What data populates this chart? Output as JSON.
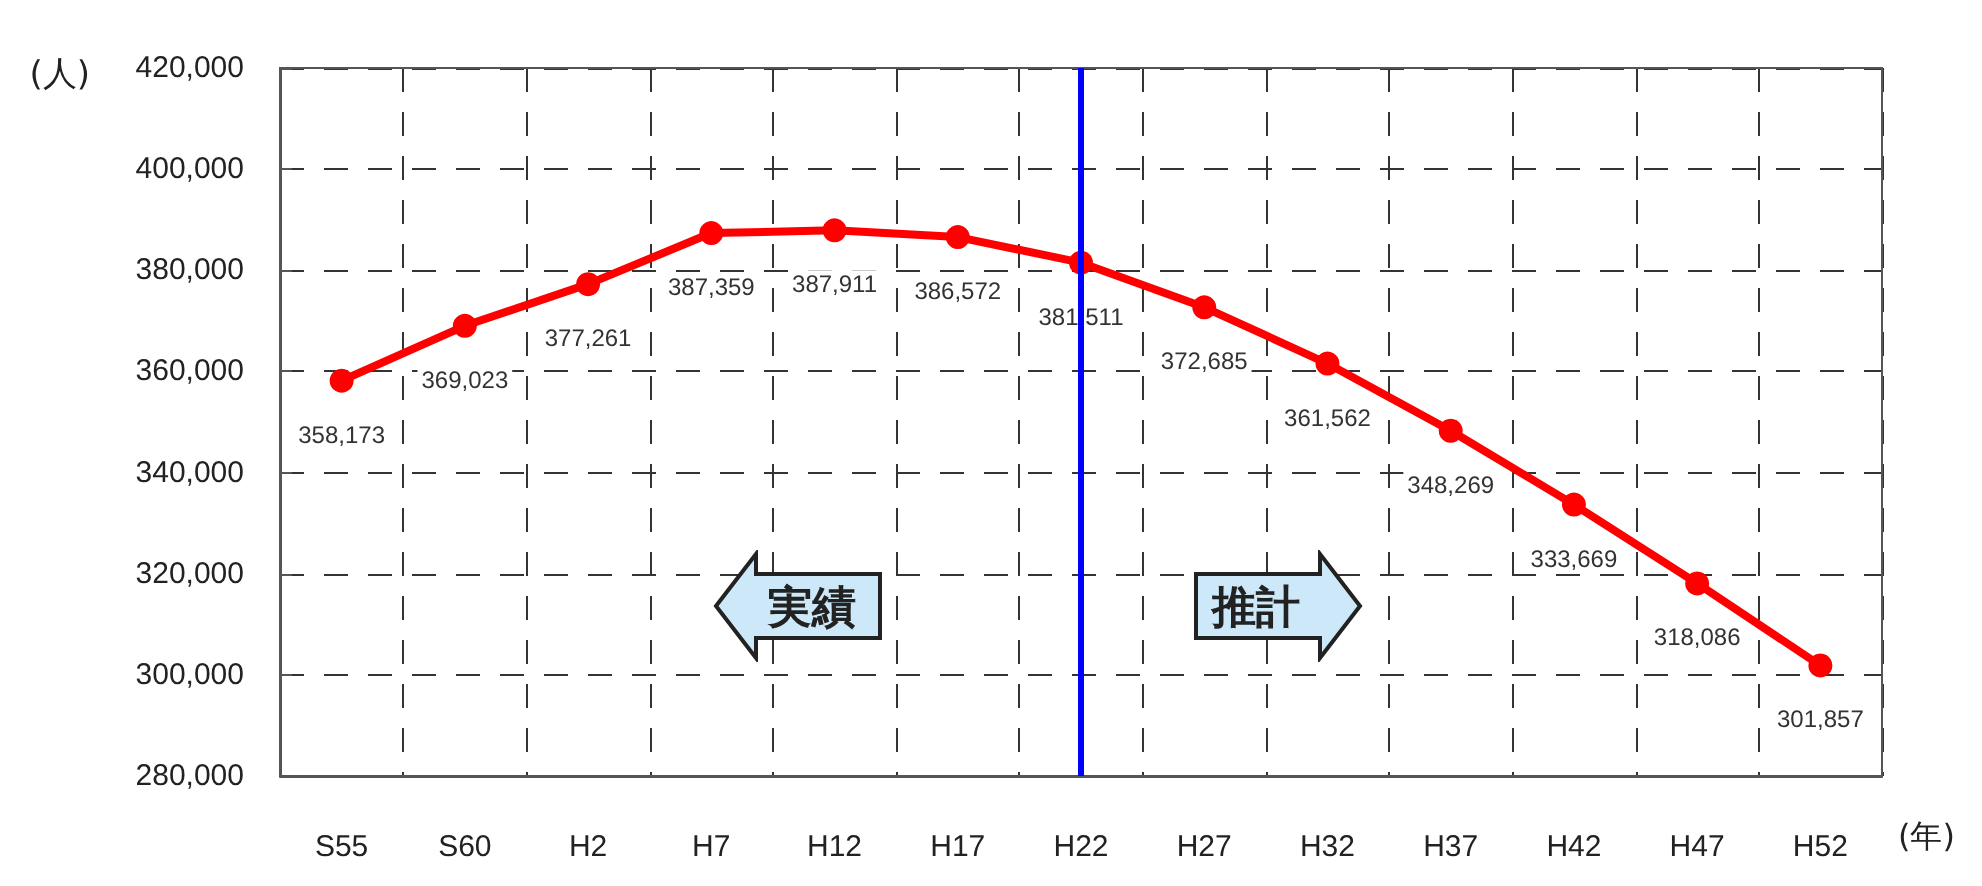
{
  "chart_data": {
    "type": "line",
    "xlabel": "(年)",
    "ylabel": "(人)",
    "categories": [
      "S55",
      "S60",
      "H2",
      "H7",
      "H12",
      "H17",
      "H22",
      "H27",
      "H32",
      "H37",
      "H42",
      "H47",
      "H52"
    ],
    "series": [
      {
        "color": "#ff0000",
        "values": [
          358173,
          369023,
          377261,
          387359,
          387911,
          386572,
          381511,
          372685,
          361562,
          348269,
          333669,
          318086,
          301857
        ],
        "value_labels": [
          "358,173",
          "369,023",
          "377,261",
          "387,359",
          "387,911",
          "386,572",
          "381,511",
          "372,685",
          "361,562",
          "348,269",
          "333,669",
          "318,086",
          "301,857"
        ]
      }
    ],
    "ylim": [
      280000,
      420000
    ],
    "yticks": [
      {
        "value": 280000,
        "label": "280,000"
      },
      {
        "value": 300000,
        "label": "300,000"
      },
      {
        "value": 320000,
        "label": "320,000"
      },
      {
        "value": 340000,
        "label": "340,000"
      },
      {
        "value": 360000,
        "label": "360,000"
      },
      {
        "value": 380000,
        "label": "380,000"
      },
      {
        "value": 400000,
        "label": "400,000"
      },
      {
        "value": 420000,
        "label": "420,000"
      }
    ],
    "ref_lines": [
      {
        "axis": "x",
        "value": "H22",
        "color": "#0000ff"
      }
    ],
    "annotations": [
      "実績",
      "推計"
    ],
    "grid": true,
    "marker": "circle",
    "line_style": "solid"
  }
}
